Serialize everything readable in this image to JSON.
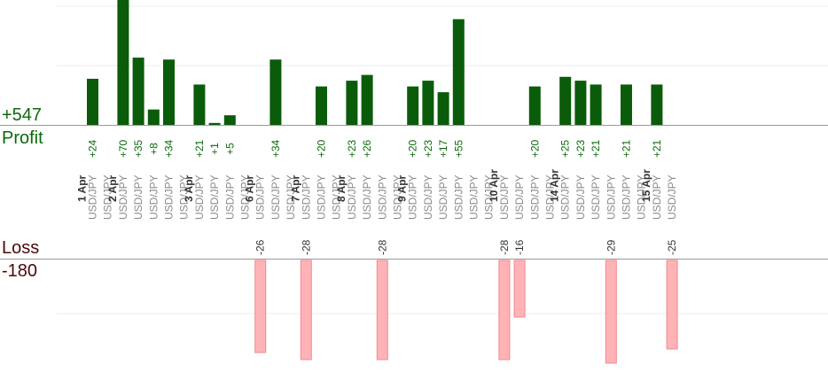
{
  "summary": {
    "profit_total": "+547",
    "profit_label": "Profit",
    "loss_label": "Loss",
    "loss_total": "-180"
  },
  "colors": {
    "profit_bar": "#0a5c0a",
    "profit_text": "#0a6a0a",
    "loss_bar": "#ffb3b6",
    "loss_bar_edge": "#f08a90",
    "loss_text": "#4a0a0a",
    "pair_text": "#8a8a8a",
    "date_text": "#333333",
    "grid": "#ececec",
    "axis": "#9a9a9a"
  },
  "chart_data": {
    "type": "bar",
    "title": "",
    "xlabel": "",
    "ylabel": "",
    "grid": true,
    "series": [
      {
        "name": "Profit",
        "color": "#0a5c0a"
      },
      {
        "name": "Loss",
        "color": "#ffb3b6"
      }
    ],
    "trades": [
      {
        "date": "1 Apr",
        "pair": "USD/JPY",
        "value": 24
      },
      {
        "date": "",
        "pair": "USD/JPY",
        "value": 0
      },
      {
        "date": "2 Apr",
        "pair": "USD/JPY",
        "value": 70
      },
      {
        "date": "",
        "pair": "USD/JPY",
        "value": 35
      },
      {
        "date": "",
        "pair": "USD/JPY",
        "value": 8
      },
      {
        "date": "",
        "pair": "USD/JPY",
        "value": 34
      },
      {
        "date": "",
        "pair": "USD/JPY",
        "value": 0
      },
      {
        "date": "3 Apr",
        "pair": "USD/JPY",
        "value": 21
      },
      {
        "date": "",
        "pair": "USD/JPY",
        "value": 1
      },
      {
        "date": "",
        "pair": "USD/JPY",
        "value": 5
      },
      {
        "date": "",
        "pair": "USD/JPY",
        "value": 0
      },
      {
        "date": "6 Apr",
        "pair": "USD/JPY",
        "value": -26
      },
      {
        "date": "",
        "pair": "USD/JPY",
        "value": 34
      },
      {
        "date": "",
        "pair": "USD/JPY",
        "value": 0
      },
      {
        "date": "7 Apr",
        "pair": "USD/JPY",
        "value": -28
      },
      {
        "date": "",
        "pair": "USD/JPY",
        "value": 20
      },
      {
        "date": "",
        "pair": "USD/JPY",
        "value": 0
      },
      {
        "date": "8 Apr",
        "pair": "USD/JPY",
        "value": 23
      },
      {
        "date": "",
        "pair": "USD/JPY",
        "value": 26
      },
      {
        "date": "",
        "pair": "USD/JPY",
        "value": -28
      },
      {
        "date": "",
        "pair": "USD/JPY",
        "value": 0
      },
      {
        "date": "9 Apr",
        "pair": "USD/JPY",
        "value": 20
      },
      {
        "date": "",
        "pair": "USD/JPY",
        "value": 23
      },
      {
        "date": "",
        "pair": "USD/JPY",
        "value": 17
      },
      {
        "date": "",
        "pair": "USD/JPY",
        "value": 55
      },
      {
        "date": "",
        "pair": "USD/JPY",
        "value": 0
      },
      {
        "date": "",
        "pair": "USD/JPY",
        "value": 0
      },
      {
        "date": "10 Apr",
        "pair": "USD/JPY",
        "value": -28
      },
      {
        "date": "",
        "pair": "USD/JPY",
        "value": -16
      },
      {
        "date": "",
        "pair": "USD/JPY",
        "value": 20
      },
      {
        "date": "",
        "pair": "USD/JPY",
        "value": 0
      },
      {
        "date": "14 Apr",
        "pair": "USD/JPY",
        "value": 25
      },
      {
        "date": "",
        "pair": "USD/JPY",
        "value": 23
      },
      {
        "date": "",
        "pair": "USD/JPY",
        "value": 21
      },
      {
        "date": "",
        "pair": "USD/JPY",
        "value": -29
      },
      {
        "date": "",
        "pair": "USD/JPY",
        "value": 21
      },
      {
        "date": "",
        "pair": "USD/JPY",
        "value": 0
      },
      {
        "date": "15 Apr",
        "pair": "USD/JPY",
        "value": 21
      },
      {
        "date": "",
        "pair": "USD/JPY",
        "value": -25
      }
    ]
  }
}
